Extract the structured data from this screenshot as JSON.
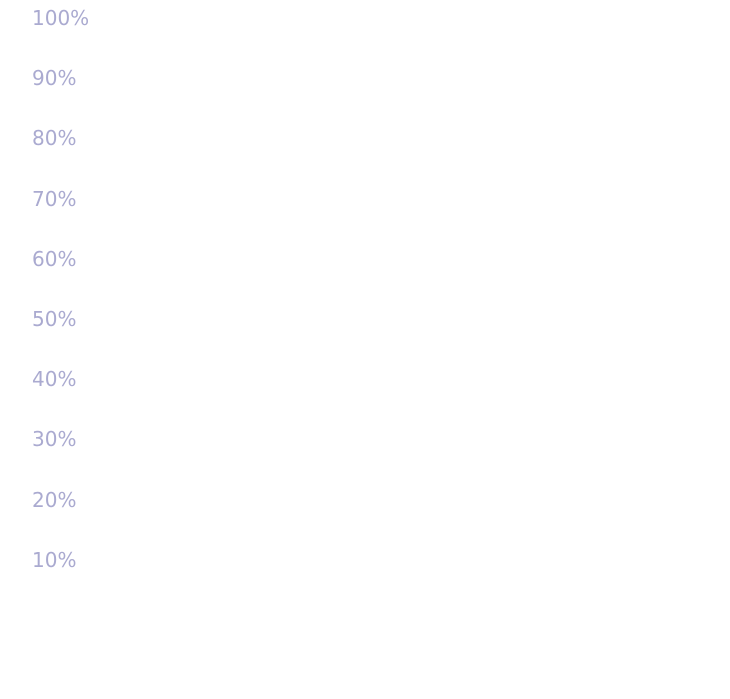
{
  "chart_data": {
    "type": "bar",
    "title": "",
    "xlabel": "",
    "ylabel": "",
    "categories": [],
    "values": [],
    "ylim": [
      0,
      100
    ],
    "grid": false,
    "y_ticks": [
      "100%",
      "90%",
      "80%",
      "70%",
      "60%",
      "50%",
      "40%",
      "30%",
      "20%",
      "10%"
    ]
  },
  "colors": {
    "tick_label": "#aaaad0",
    "background": "#ffffff"
  }
}
